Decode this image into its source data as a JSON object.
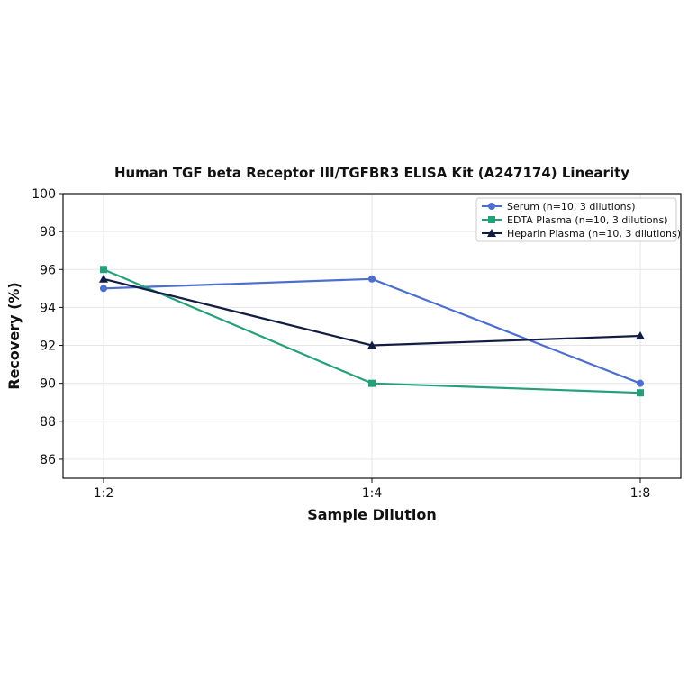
{
  "chart_data": {
    "type": "line",
    "title": "Human TGF beta Receptor III/TGFBR3 ELISA Kit (A247174) Linearity",
    "xlabel": "Sample Dilution",
    "ylabel": "Recovery (%)",
    "categories": [
      "1:2",
      "1:4",
      "1:8"
    ],
    "ylim": [
      85,
      100
    ],
    "yticks": [
      86,
      88,
      90,
      92,
      94,
      96,
      98,
      100
    ],
    "grid": true,
    "legend_position": "top-right",
    "series": [
      {
        "name": "Serum (n=10, 3 dilutions)",
        "values": [
          95,
          95.5,
          90
        ],
        "color": "#4c6fcf",
        "marker": "circle"
      },
      {
        "name": "EDTA Plasma (n=10, 3 dilutions)",
        "values": [
          96,
          90,
          89.5
        ],
        "color": "#24a07a",
        "marker": "square"
      },
      {
        "name": "Heparin Plasma (n=10, 3 dilutions)",
        "values": [
          95.5,
          92,
          92.5
        ],
        "color": "#131c45",
        "marker": "triangle"
      }
    ]
  }
}
